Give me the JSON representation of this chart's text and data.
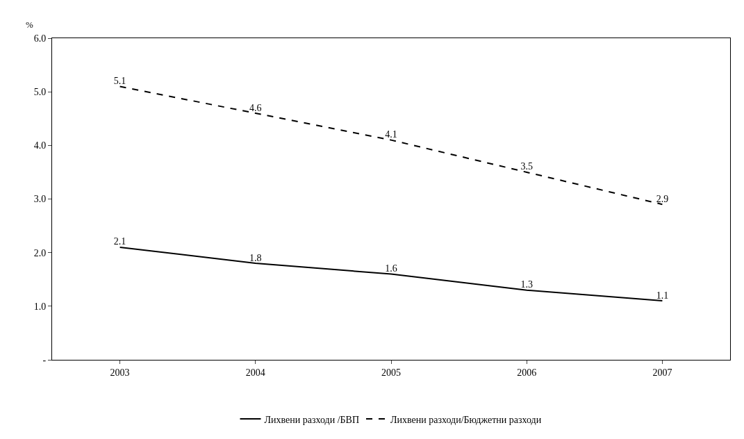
{
  "chart_data": {
    "type": "line",
    "ylabel": "%",
    "categories": [
      "2003",
      "2004",
      "2005",
      "2006",
      "2007"
    ],
    "series": [
      {
        "name": "Лихвени разходи /БВП",
        "color": "#000000",
        "line_style": "solid",
        "values": [
          2.1,
          1.8,
          1.6,
          1.3,
          1.1
        ]
      },
      {
        "name": "Лихвени разходи/Бюджетни разходи",
        "color": "#000000",
        "line_style": "dashed",
        "values": [
          5.1,
          4.6,
          4.1,
          3.5,
          2.9
        ]
      }
    ],
    "ylim": [
      0,
      6
    ],
    "yticks": [
      {
        "value": 0,
        "label": "-"
      },
      {
        "value": 1,
        "label": "1.0"
      },
      {
        "value": 2,
        "label": "2.0"
      },
      {
        "value": 3,
        "label": "3.0"
      },
      {
        "value": 4,
        "label": "4.0"
      },
      {
        "value": 5,
        "label": "5.0"
      },
      {
        "value": 6,
        "label": "6.0"
      }
    ],
    "data_labels": true,
    "legend": "bottom",
    "marker": "none"
  }
}
